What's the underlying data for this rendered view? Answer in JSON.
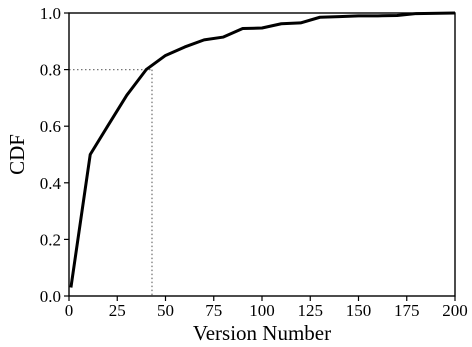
{
  "chart_data": {
    "type": "line",
    "title": "",
    "xlabel": "Version Number",
    "ylabel": "CDF",
    "xlim": [
      0,
      200
    ],
    "ylim": [
      0,
      1.0
    ],
    "grid": false,
    "legend": "none",
    "x_ticks": [
      "0",
      "25",
      "50",
      "75",
      "100",
      "125",
      "150",
      "175",
      "200"
    ],
    "y_ticks": [
      "0.0",
      "0.2",
      "0.4",
      "0.6",
      "0.8",
      "1.0"
    ],
    "series": [
      {
        "color": "#000000",
        "x": [
          1,
          11,
          20,
          30,
          40,
          50,
          60,
          70,
          80,
          90,
          100,
          110,
          120,
          130,
          140,
          150,
          160,
          170,
          180,
          200
        ],
        "y": [
          0.03,
          0.5,
          0.6,
          0.71,
          0.8,
          0.85,
          0.88,
          0.905,
          0.915,
          0.945,
          0.947,
          0.962,
          0.965,
          0.985,
          0.987,
          0.99,
          0.99,
          0.991,
          0.998,
          1.0
        ]
      }
    ],
    "reference_lines": {
      "color": "#777777",
      "style": "dotted",
      "x": 43,
      "y": 0.8
    }
  }
}
